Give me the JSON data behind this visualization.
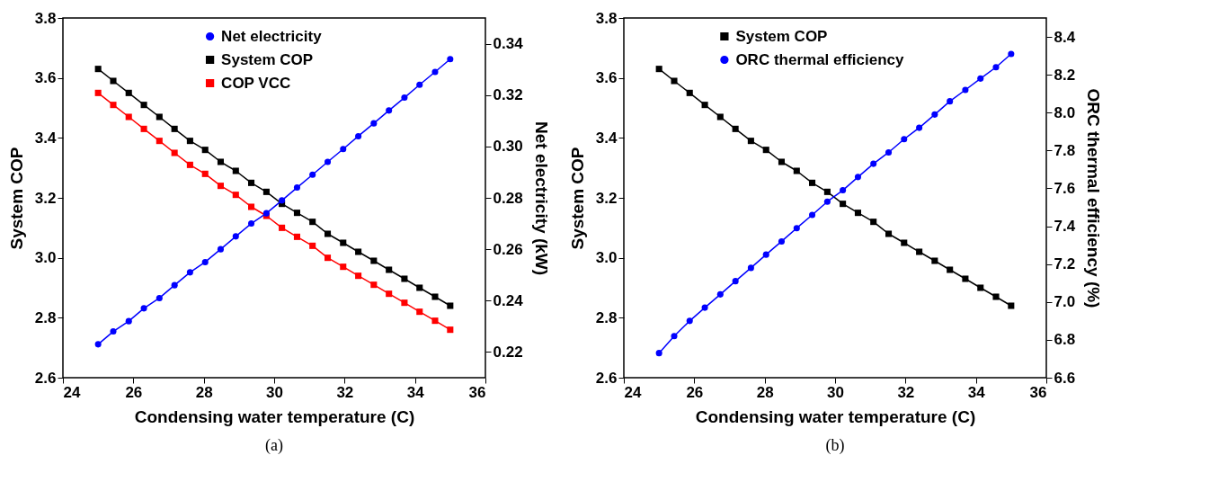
{
  "chart_data": [
    {
      "type": "line",
      "xlabel": "Condensing water temperature (C)",
      "ylabel": "System COP",
      "y2label": "Net electricity (kW)",
      "annotations": [
        "(a)"
      ],
      "x": [
        25,
        25.43,
        25.87,
        26.3,
        26.74,
        27.17,
        27.61,
        28.04,
        28.48,
        28.91,
        29.35,
        29.78,
        30.22,
        30.65,
        31.09,
        31.52,
        31.96,
        32.39,
        32.83,
        33.26,
        33.7,
        34.13,
        34.57,
        35
      ],
      "series": [
        {
          "name": "Net electricity",
          "color": "#0000ff",
          "marker": "circle",
          "axis": "y2",
          "values": [
            0.223,
            0.228,
            0.232,
            0.237,
            0.241,
            0.246,
            0.251,
            0.255,
            0.26,
            0.265,
            0.27,
            0.274,
            0.279,
            0.284,
            0.289,
            0.294,
            0.299,
            0.304,
            0.309,
            0.314,
            0.319,
            0.324,
            0.329,
            0.334
          ]
        },
        {
          "name": "System COP",
          "color": "#000000",
          "marker": "square",
          "values": [
            3.63,
            3.59,
            3.55,
            3.51,
            3.47,
            3.43,
            3.39,
            3.36,
            3.32,
            3.29,
            3.25,
            3.22,
            3.18,
            3.15,
            3.12,
            3.08,
            3.05,
            3.02,
            2.99,
            2.96,
            2.93,
            2.9,
            2.87,
            2.84
          ]
        },
        {
          "name": "COP VCC",
          "color": "#ff0000",
          "marker": "square",
          "values": [
            3.55,
            3.51,
            3.47,
            3.43,
            3.39,
            3.35,
            3.31,
            3.28,
            3.24,
            3.21,
            3.17,
            3.14,
            3.1,
            3.07,
            3.04,
            3.0,
            2.97,
            2.94,
            2.91,
            2.88,
            2.85,
            2.82,
            2.79,
            2.76
          ]
        }
      ],
      "xlim": [
        24,
        36
      ],
      "xticks": [
        24,
        26,
        28,
        30,
        32,
        34,
        36
      ],
      "ylim": [
        2.6,
        3.8
      ],
      "yticks": [
        2.6,
        2.8,
        {
          "value": 3,
          "label": "3.0"
        },
        3.2,
        3.4,
        3.6,
        3.8
      ],
      "y2lim": [
        0.21,
        0.35
      ],
      "y2ticks": [
        0.22,
        0.24,
        0.26,
        0.28,
        {
          "value": 0.3,
          "label": "0.30"
        },
        0.32,
        0.34
      ],
      "grid": false,
      "legend": "top"
    },
    {
      "type": "line",
      "xlabel": "Condensing water temperature (C)",
      "ylabel": "System COP",
      "y2label": "ORC thermal efficiency (%)",
      "annotations": [
        "(b)"
      ],
      "x": [
        25,
        25.43,
        25.87,
        26.3,
        26.74,
        27.17,
        27.61,
        28.04,
        28.48,
        28.91,
        29.35,
        29.78,
        30.22,
        30.65,
        31.09,
        31.52,
        31.96,
        32.39,
        32.83,
        33.26,
        33.7,
        34.13,
        34.57,
        35
      ],
      "series": [
        {
          "name": "System COP",
          "color": "#000000",
          "marker": "square",
          "values": [
            3.63,
            3.59,
            3.55,
            3.51,
            3.47,
            3.43,
            3.39,
            3.36,
            3.32,
            3.29,
            3.25,
            3.22,
            3.18,
            3.15,
            3.12,
            3.08,
            3.05,
            3.02,
            2.99,
            2.96,
            2.93,
            2.9,
            2.87,
            2.84
          ]
        },
        {
          "name": "ORC thermal efficiency",
          "color": "#0000ff",
          "marker": "circle",
          "axis": "y2",
          "values": [
            6.73,
            6.82,
            6.9,
            6.97,
            7.04,
            7.11,
            7.18,
            7.25,
            7.32,
            7.39,
            7.46,
            7.53,
            7.59,
            7.66,
            7.73,
            7.79,
            7.86,
            7.92,
            7.99,
            8.06,
            8.12,
            8.18,
            8.24,
            8.31
          ]
        }
      ],
      "xlim": [
        24,
        36
      ],
      "xticks": [
        24,
        26,
        28,
        30,
        32,
        34,
        36
      ],
      "ylim": [
        2.6,
        3.8
      ],
      "yticks": [
        2.6,
        2.8,
        {
          "value": 3,
          "label": "3.0"
        },
        3.2,
        3.4,
        3.6,
        3.8
      ],
      "y2lim": [
        6.6,
        8.5
      ],
      "y2ticks": [
        6.6,
        6.8,
        {
          "value": 7,
          "label": "7.0"
        },
        7.2,
        7.4,
        7.6,
        7.8,
        {
          "value": 8,
          "label": "8.0"
        },
        8.2,
        8.4
      ],
      "grid": false,
      "legend": "top left"
    }
  ]
}
